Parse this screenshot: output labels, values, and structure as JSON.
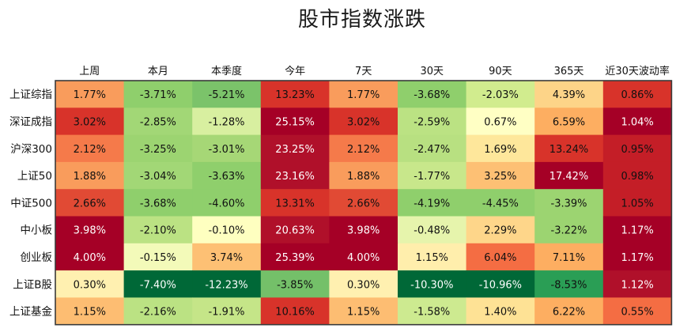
{
  "chart_data": {
    "type": "heatmap",
    "title": "股市指数涨跌",
    "columns": [
      "上周",
      "本月",
      "本季度",
      "今年",
      "7天",
      "30天",
      "90天",
      "365天",
      "近30天波动率"
    ],
    "rows": [
      {
        "label": "上证综指",
        "values": [
          "1.77%",
          "-3.71%",
          "-5.21%",
          "13.23%",
          "1.77%",
          "-3.68%",
          "-2.03%",
          "4.39%",
          "0.86%"
        ]
      },
      {
        "label": "深证成指",
        "values": [
          "3.02%",
          "-2.85%",
          "-1.28%",
          "25.15%",
          "3.02%",
          "-2.59%",
          "0.67%",
          "6.59%",
          "1.04%"
        ]
      },
      {
        "label": "沪深300",
        "values": [
          "2.12%",
          "-3.25%",
          "-3.01%",
          "23.25%",
          "2.12%",
          "-2.47%",
          "1.69%",
          "13.24%",
          "0.95%"
        ]
      },
      {
        "label": "上证50",
        "values": [
          "1.88%",
          "-3.04%",
          "-3.63%",
          "23.16%",
          "1.88%",
          "-1.77%",
          "3.25%",
          "17.42%",
          "0.98%"
        ]
      },
      {
        "label": "中证500",
        "values": [
          "2.66%",
          "-3.68%",
          "-4.60%",
          "13.31%",
          "2.66%",
          "-4.19%",
          "-4.45%",
          "-3.39%",
          "1.05%"
        ]
      },
      {
        "label": "中小板",
        "values": [
          "3.98%",
          "-2.10%",
          "-0.10%",
          "20.63%",
          "3.98%",
          "-0.48%",
          "2.29%",
          "-3.22%",
          "1.17%"
        ]
      },
      {
        "label": "创业板",
        "values": [
          "4.00%",
          "-0.15%",
          "3.74%",
          "25.39%",
          "4.00%",
          "1.15%",
          "6.04%",
          "7.11%",
          "1.17%"
        ]
      },
      {
        "label": "上证B股",
        "values": [
          "0.30%",
          "-7.40%",
          "-12.23%",
          "-3.85%",
          "0.30%",
          "-10.30%",
          "-10.96%",
          "-8.53%",
          "1.12%"
        ]
      },
      {
        "label": "上证基金",
        "values": [
          "1.15%",
          "-2.16%",
          "-1.91%",
          "10.16%",
          "1.15%",
          "-1.58%",
          "1.40%",
          "6.22%",
          "0.55%"
        ]
      }
    ],
    "cell_colors": [
      [
        "#f99c5c",
        "#8fcf6c",
        "#7bc36a",
        "#d8332a",
        "#f99c5c",
        "#8fcf6c",
        "#d1ec8e",
        "#fdd488",
        "#d8332a"
      ],
      [
        "#d8332a",
        "#a2d776",
        "#d8efa0",
        "#a50026",
        "#d8332a",
        "#bbe283",
        "#ffffc4",
        "#fdae61",
        "#a50026"
      ],
      [
        "#f57a4a",
        "#9cd471",
        "#a6d776",
        "#b0102a",
        "#f57a4a",
        "#b8e081",
        "#fee79b",
        "#d8332a",
        "#c41e27"
      ],
      [
        "#f99c5c",
        "#a2d776",
        "#8fcf6c",
        "#b0102a",
        "#f99c5c",
        "#c8e78b",
        "#fdc074",
        "#a50026",
        "#c41e27"
      ],
      [
        "#e14a34",
        "#8fcf6c",
        "#8fcf6c",
        "#d8332a",
        "#e14a34",
        "#8fcf6c",
        "#8fcf6c",
        "#9cd471",
        "#c41e27"
      ],
      [
        "#a50026",
        "#bbe283",
        "#feffc0",
        "#b0102a",
        "#a50026",
        "#e6f4ac",
        "#fed68a",
        "#9cd471",
        "#a50026"
      ],
      [
        "#a50026",
        "#f3fab9",
        "#fdc074",
        "#a50026",
        "#a50026",
        "#ffeeac",
        "#f46d43",
        "#fdae61",
        "#a50026"
      ],
      [
        "#fff0b0",
        "#006837",
        "#006837",
        "#74c069",
        "#fff0b0",
        "#006837",
        "#006837",
        "#2a9e55",
        "#b0102a"
      ],
      [
        "#fdbd72",
        "#bbe283",
        "#c5e588",
        "#d8332a",
        "#fdbd72",
        "#cdea90",
        "#fee295",
        "#fdae61",
        "#f46d43"
      ]
    ]
  }
}
